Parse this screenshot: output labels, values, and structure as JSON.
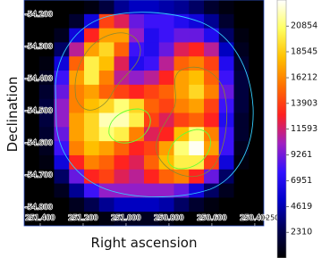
{
  "chart_data": {
    "type": "heatmap",
    "x_label": "Right ascension",
    "y_label": "Declination",
    "xlim": [
      251.475,
      250.358
    ],
    "ylim": [
      -54.858,
      -54.156
    ],
    "xticks": [
      {
        "value": 251.4,
        "label": "251.400"
      },
      {
        "value": 251.2,
        "label": "251.200"
      },
      {
        "value": 251.0,
        "label": "251.000"
      },
      {
        "value": 250.8,
        "label": "250.800"
      },
      {
        "value": 250.6,
        "label": "250.600"
      },
      {
        "value": 250.4,
        "label": "250.400"
      },
      {
        "value": 250.2,
        "label": "250."
      }
    ],
    "yticks": [
      {
        "value": -54.2,
        "label": "-54.200"
      },
      {
        "value": -54.3,
        "label": "-54.300"
      },
      {
        "value": -54.4,
        "label": "-54.400"
      },
      {
        "value": -54.5,
        "label": "-54.500"
      },
      {
        "value": -54.6,
        "label": "-54.600"
      },
      {
        "value": -54.7,
        "label": "-54.700"
      },
      {
        "value": -54.8,
        "label": "-54.800"
      }
    ],
    "clim": [
      0,
      23200
    ],
    "cticks": [
      2310,
      4619,
      6951,
      9261,
      11593,
      13903,
      16212,
      18545,
      20854
    ],
    "colormap": [
      "#000000",
      "#000050",
      "#0000c8",
      "#3010ff",
      "#a020c0",
      "#ff2020",
      "#ff7000",
      "#ffc000",
      "#ffff60",
      "#ffffff"
    ],
    "z": [
      [
        0,
        0,
        0,
        0,
        500,
        2000,
        4000,
        5000,
        5000,
        4500,
        4000,
        3000,
        1500,
        500,
        0,
        0
      ],
      [
        0,
        0,
        0,
        1500,
        6000,
        14000,
        12000,
        9000,
        8000,
        8000,
        7000,
        6000,
        4000,
        1500,
        0,
        0
      ],
      [
        0,
        0,
        1000,
        6000,
        13000,
        17000,
        17000,
        10000,
        7000,
        8000,
        9000,
        9000,
        7000,
        3000,
        500,
        0
      ],
      [
        0,
        0,
        3000,
        11000,
        17000,
        19000,
        15000,
        8000,
        7000,
        9000,
        12000,
        13000,
        11000,
        5000,
        1000,
        0
      ],
      [
        0,
        500,
        6000,
        15000,
        20000,
        18000,
        12000,
        7000,
        8000,
        11000,
        15000,
        16000,
        14000,
        7000,
        1500,
        0
      ],
      [
        0,
        1000,
        8000,
        17000,
        20000,
        16000,
        11000,
        10000,
        11000,
        13000,
        17000,
        18000,
        15000,
        8000,
        2000,
        0
      ],
      [
        0,
        1500,
        9000,
        16000,
        17000,
        15000,
        14000,
        13000,
        14000,
        15000,
        17000,
        19000,
        16000,
        9000,
        2000,
        0
      ],
      [
        0,
        2000,
        10000,
        16000,
        18000,
        19000,
        21000,
        19000,
        15000,
        14000,
        16000,
        17000,
        14000,
        8000,
        2000,
        0
      ],
      [
        0,
        2000,
        10000,
        17000,
        19000,
        22000,
        22000,
        20000,
        14000,
        12000,
        14000,
        15000,
        13000,
        7000,
        1500,
        0
      ],
      [
        0,
        1500,
        9000,
        17000,
        19000,
        21000,
        20000,
        16000,
        12000,
        13000,
        18000,
        21000,
        16000,
        8000,
        1500,
        0
      ],
      [
        0,
        1000,
        8000,
        16000,
        18000,
        17000,
        15000,
        13000,
        14000,
        17000,
        21000,
        23000,
        17000,
        8000,
        1000,
        0
      ],
      [
        0,
        500,
        6000,
        13000,
        16000,
        15000,
        13000,
        12000,
        15000,
        18000,
        20000,
        20000,
        14000,
        6000,
        500,
        0
      ],
      [
        0,
        0,
        3000,
        9000,
        13000,
        14000,
        12000,
        11000,
        13000,
        15000,
        16000,
        13000,
        9000,
        3000,
        0,
        0
      ],
      [
        0,
        0,
        1000,
        4000,
        8000,
        10000,
        10000,
        10000,
        10000,
        10000,
        9000,
        6000,
        3000,
        1000,
        0,
        0
      ],
      [
        0,
        0,
        0,
        1000,
        2500,
        4000,
        5000,
        5000,
        5000,
        4500,
        3000,
        1500,
        500,
        0,
        0,
        0
      ],
      [
        0,
        0,
        0,
        0,
        0,
        500,
        1000,
        1000,
        1000,
        500,
        0,
        0,
        0,
        0,
        0,
        0
      ]
    ]
  }
}
